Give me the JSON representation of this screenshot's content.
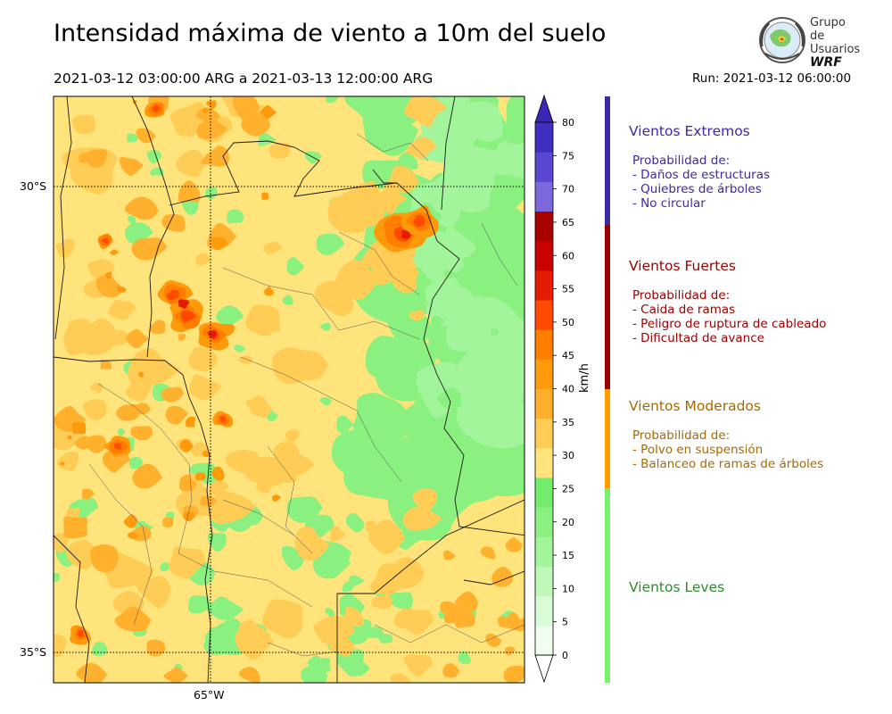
{
  "header": {
    "title": "Intensidad máxima de viento a 10m del suelo",
    "range": "2021-03-12 03:00:00 ARG  a  2021-03-13 12:00:00 ARG",
    "run": "Run: 2021-03-12 06:00:00"
  },
  "logo": {
    "line1": "Grupo de",
    "line2": "Usuarios",
    "line3": "WRF"
  },
  "axes": {
    "lat_labels": [
      "30°S",
      "35°S"
    ],
    "lon_labels": [
      "65°W"
    ]
  },
  "colorbar": {
    "unit": "km/h",
    "ticks": [
      "0",
      "5",
      "10",
      "15",
      "20",
      "25",
      "30",
      "35",
      "40",
      "45",
      "50",
      "55",
      "60",
      "65",
      "70",
      "75",
      "80"
    ],
    "colors": [
      "#f0fff0",
      "#d8fcd5",
      "#bff8b8",
      "#a3f59b",
      "#8af07f",
      "#73ec6c",
      "#ffe37b",
      "#ffcc55",
      "#ffb12e",
      "#ff9a0b",
      "#ff7e00",
      "#ff4a00",
      "#e51c00",
      "#c80000",
      "#a80000",
      "#7b68dd",
      "#5a47cf",
      "#3f2fc0"
    ],
    "extend_top_color": "#3b26b8",
    "extend_bottom_color": "#ffffff"
  },
  "categories": [
    {
      "title": "Vientos Extremos",
      "color": "#3b2aa8",
      "bar_color": "#3b2aa8",
      "desc": [
        "Probabilidad de:",
        "- Daños de estructuras",
        "- Quiebres de árboles",
        "- No circular"
      ]
    },
    {
      "title": "Vientos Fuertes",
      "color": "#9a0000",
      "bar_color": "#9a0000",
      "desc": [
        "Probabilidad de:",
        "- Caida de ramas",
        "- Peligro de ruptura de cableado",
        "- Dificultad de avance"
      ]
    },
    {
      "title": "Vientos Moderados",
      "color": "#a86a00",
      "bar_color": "#ff9d00",
      "desc": [
        "Probabilidad de:",
        "- Polvo en suspensión",
        "- Balanceo de ramas de árboles"
      ]
    },
    {
      "title": "Vientos Leves",
      "color": "#2e8b2e",
      "bar_color": "#77f06a",
      "desc": []
    }
  ]
}
